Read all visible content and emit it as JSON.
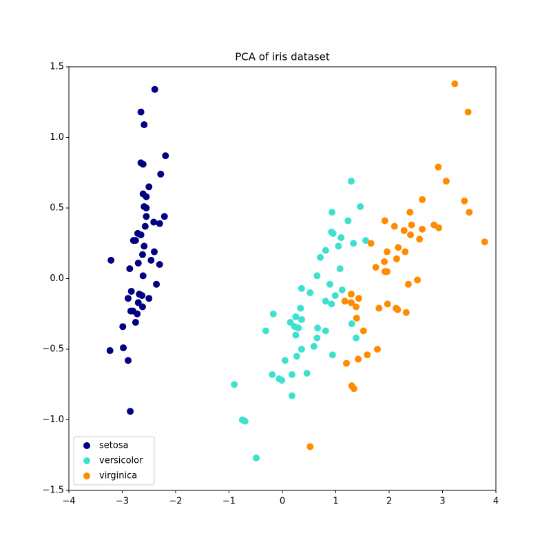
{
  "chart_data": {
    "type": "scatter",
    "title": "PCA of iris dataset",
    "xlim": [
      -4,
      4
    ],
    "ylim": [
      -1.5,
      1.5
    ],
    "xticks": [
      {
        "value": -4,
        "label": "−4"
      },
      {
        "value": -3,
        "label": "−3"
      },
      {
        "value": -2,
        "label": "−2"
      },
      {
        "value": -1,
        "label": "−1"
      },
      0,
      1,
      2,
      3,
      4
    ],
    "yticks": [
      {
        "value": -1.5,
        "label": "−1.5"
      },
      {
        "value": -1,
        "label": "−1.0"
      },
      {
        "value": -0.5,
        "label": "−0.5"
      },
      {
        "value": 0,
        "label": "0.0"
      },
      0.5,
      {
        "value": 1,
        "label": "1.0"
      },
      1.5
    ],
    "legend": "lower left",
    "series": [
      {
        "name": "setosa",
        "color": "#000080",
        "x": [
          -2.39,
          -2.65,
          -2.59,
          -2.19,
          -2.65,
          -2.61,
          -2.28,
          -2.5,
          -2.61,
          -2.55,
          -2.59,
          -2.55,
          -2.55,
          -2.21,
          -2.41,
          -2.3,
          -2.57,
          -2.71,
          -2.65,
          -2.79,
          -2.75,
          -2.59,
          -2.4,
          -2.62,
          -3.21,
          -2.46,
          -2.3,
          -2.7,
          -2.86,
          -2.61,
          -2.36,
          -2.83,
          -2.68,
          -2.63,
          -2.89,
          -2.5,
          -2.7,
          -2.62,
          -2.8,
          -2.84,
          -2.72,
          -2.75,
          -2.99,
          -2.98,
          -3.23,
          -2.89,
          -2.85
        ],
        "y": [
          1.34,
          1.18,
          1.09,
          0.87,
          0.82,
          0.81,
          0.74,
          0.65,
          0.6,
          0.58,
          0.51,
          0.5,
          0.44,
          0.44,
          0.4,
          0.39,
          0.37,
          0.32,
          0.31,
          0.27,
          0.27,
          0.23,
          0.19,
          0.17,
          0.13,
          0.13,
          0.1,
          0.11,
          0.07,
          0.02,
          -0.04,
          -0.09,
          -0.11,
          -0.12,
          -0.14,
          -0.14,
          -0.17,
          -0.2,
          -0.23,
          -0.23,
          -0.25,
          -0.31,
          -0.34,
          -0.49,
          -0.51,
          -0.58,
          -0.94
        ]
      },
      {
        "name": "versicolor",
        "color": "#40e0d0",
        "x": [
          1.29,
          1.46,
          0.93,
          1.23,
          0.92,
          0.95,
          1.1,
          1.56,
          1.33,
          1.05,
          0.81,
          0.71,
          1.08,
          0.65,
          0.36,
          0.89,
          1.12,
          0.52,
          0.99,
          0.81,
          0.92,
          0.34,
          -0.17,
          0.25,
          0.36,
          0.15,
          1.3,
          0.23,
          0.3,
          0.66,
          0.81,
          -0.31,
          0.25,
          0.65,
          1.38,
          0.59,
          0.36,
          0.94,
          0.27,
          0.05,
          0.46,
          0.18,
          -0.19,
          -0.06,
          -0.01,
          0.18,
          -0.9,
          -0.75,
          -0.7,
          -0.49
        ],
        "y": [
          0.69,
          0.51,
          0.47,
          0.41,
          0.33,
          0.32,
          0.29,
          0.27,
          0.25,
          0.23,
          0.2,
          0.15,
          0.07,
          0.02,
          -0.07,
          -0.04,
          -0.08,
          -0.1,
          -0.12,
          -0.16,
          -0.18,
          -0.21,
          -0.25,
          -0.27,
          -0.29,
          -0.31,
          -0.32,
          -0.34,
          -0.35,
          -0.35,
          -0.37,
          -0.37,
          -0.4,
          -0.42,
          -0.42,
          -0.48,
          -0.5,
          -0.54,
          -0.55,
          -0.58,
          -0.67,
          -0.68,
          -0.68,
          -0.71,
          -0.72,
          -0.83,
          -0.75,
          -1.0,
          -1.01,
          -1.27
        ]
      },
      {
        "name": "virginica",
        "color": "#ff8c00",
        "x": [
          3.23,
          3.48,
          2.92,
          3.07,
          2.62,
          3.41,
          3.5,
          2.39,
          1.92,
          2.1,
          2.42,
          2.84,
          2.93,
          2.28,
          2.62,
          2.4,
          2.57,
          1.66,
          2.17,
          1.96,
          2.3,
          2.14,
          1.91,
          1.75,
          1.92,
          1.96,
          2.53,
          2.36,
          1.29,
          1.43,
          1.17,
          1.29,
          1.97,
          1.38,
          1.81,
          2.13,
          2.16,
          2.32,
          1.39,
          1.52,
          1.78,
          1.59,
          1.42,
          1.2,
          1.3,
          1.34,
          0.52,
          3.79
        ],
        "y": [
          1.38,
          1.18,
          0.79,
          0.69,
          0.56,
          0.55,
          0.47,
          0.47,
          0.41,
          0.37,
          0.38,
          0.38,
          0.36,
          0.34,
          0.35,
          0.31,
          0.28,
          0.25,
          0.22,
          0.19,
          0.19,
          0.14,
          0.12,
          0.08,
          0.05,
          0.05,
          -0.01,
          -0.04,
          -0.11,
          -0.14,
          -0.16,
          -0.17,
          -0.18,
          -0.2,
          -0.21,
          -0.21,
          -0.22,
          -0.24,
          -0.28,
          -0.37,
          -0.5,
          -0.54,
          -0.57,
          -0.6,
          -0.76,
          -0.78,
          -1.19,
          0.26
        ]
      }
    ]
  }
}
